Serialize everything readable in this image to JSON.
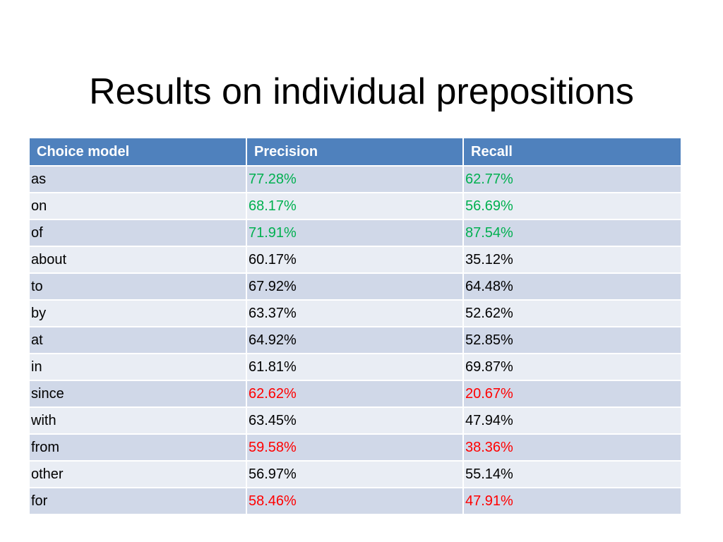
{
  "slide": {
    "title": "Results on individual prepositions"
  },
  "table": {
    "headers": [
      "Choice model",
      "Precision",
      "Recall"
    ],
    "rows": [
      {
        "word": "as",
        "precision": "77.28%",
        "recall": "62.77%",
        "highlight": "good"
      },
      {
        "word": "on",
        "precision": "68.17%",
        "recall": "56.69%",
        "highlight": "good"
      },
      {
        "word": "of",
        "precision": "71.91%",
        "recall": "87.54%",
        "highlight": "good"
      },
      {
        "word": "about",
        "precision": "60.17%",
        "recall": "35.12%",
        "highlight": ""
      },
      {
        "word": "to",
        "precision": "67.92%",
        "recall": "64.48%",
        "highlight": ""
      },
      {
        "word": "by",
        "precision": "63.37%",
        "recall": "52.62%",
        "highlight": ""
      },
      {
        "word": "at",
        "precision": "64.92%",
        "recall": "52.85%",
        "highlight": ""
      },
      {
        "word": "in",
        "precision": "61.81%",
        "recall": "69.87%",
        "highlight": ""
      },
      {
        "word": "since",
        "precision": "62.62%",
        "recall": "20.67%",
        "highlight": "bad"
      },
      {
        "word": "with",
        "precision": "63.45%",
        "recall": "47.94%",
        "highlight": ""
      },
      {
        "word": "from",
        "precision": "59.58%",
        "recall": "38.36%",
        "highlight": "bad"
      },
      {
        "word": "other",
        "precision": "56.97%",
        "recall": "55.14%",
        "highlight": ""
      },
      {
        "word": "for",
        "precision": "58.46%",
        "recall": "47.91%",
        "highlight": "bad"
      }
    ]
  },
  "colors": {
    "header_bg": "#4f81bd",
    "row_band_dark": "#d0d8e8",
    "row_band_light": "#e9edf4",
    "good": "#00b050",
    "bad": "#ff0000"
  }
}
